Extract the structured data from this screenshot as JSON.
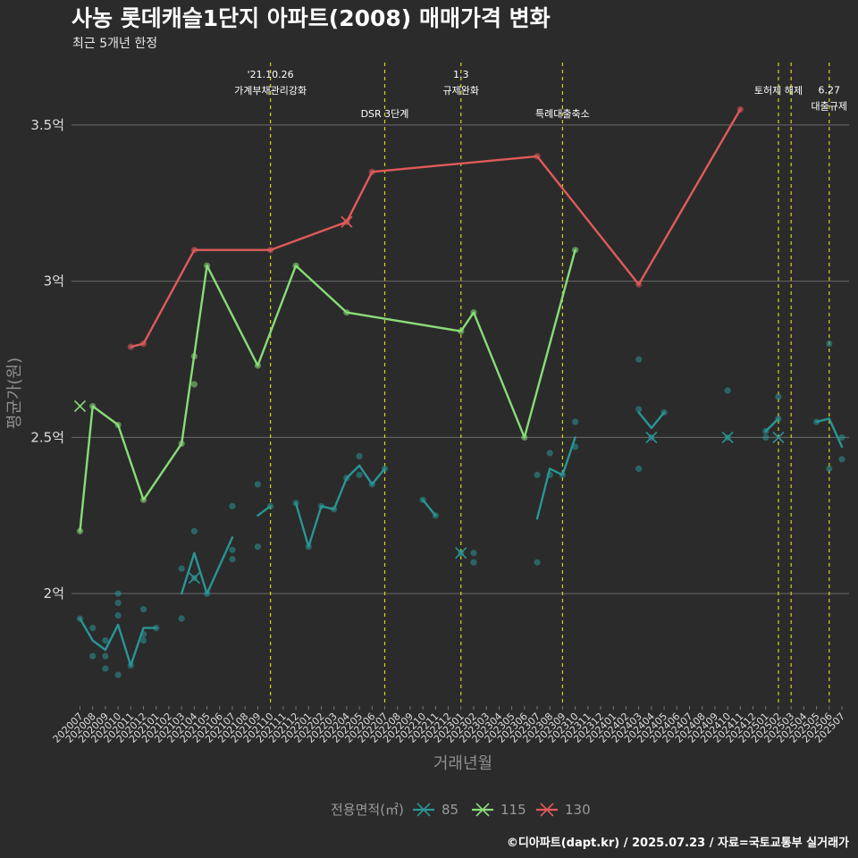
{
  "chart_data": {
    "type": "line",
    "title": "사농 롯데캐슬1단지 아파트(2008) 매매가격 변화",
    "subtitle": "최근 5개년 한정",
    "xlabel": "거래년월",
    "ylabel": "평균가(원)",
    "caption": "©디아파트(dapt.kr) / 2025.07.23 / 자료=국토교통부 실거래가",
    "ylim": [
      1.64,
      3.7
    ],
    "yticks": [
      {
        "value": 2.0,
        "label": "2억"
      },
      {
        "value": 2.5,
        "label": "2.5억"
      },
      {
        "value": 3.0,
        "label": "3억"
      },
      {
        "value": 3.5,
        "label": "3.5억"
      }
    ],
    "categories": [
      "202007",
      "202008",
      "202009",
      "202010",
      "202011",
      "202012",
      "202101",
      "202102",
      "202103",
      "202104",
      "202105",
      "202106",
      "202107",
      "202108",
      "202109",
      "202110",
      "202111",
      "202112",
      "202201",
      "202202",
      "202203",
      "202204",
      "202205",
      "202206",
      "202207",
      "202208",
      "202209",
      "202210",
      "202211",
      "202212",
      "202301",
      "202302",
      "202303",
      "202304",
      "202305",
      "202306",
      "202307",
      "202308",
      "202309",
      "202310",
      "202311",
      "202312",
      "202401",
      "202402",
      "202403",
      "202404",
      "202405",
      "202406",
      "202407",
      "202408",
      "202409",
      "202410",
      "202411",
      "202412",
      "202501",
      "202502",
      "202503",
      "202504",
      "202505",
      "202506",
      "202507"
    ],
    "legend": {
      "title": "전용면적(㎡)",
      "entries": [
        "85",
        "115",
        "130"
      ]
    },
    "series": [
      {
        "name": "85",
        "color": "#2a9595",
        "segments": [
          [
            [
              0,
              1.92
            ],
            [
              1,
              1.85
            ],
            [
              2,
              1.82
            ],
            [
              3,
              1.9
            ],
            [
              4,
              1.77
            ],
            [
              5,
              1.89
            ],
            [
              6,
              1.89
            ]
          ],
          [
            [
              8,
              2.0
            ],
            [
              9,
              2.13
            ],
            [
              10,
              2.0
            ],
            [
              12,
              2.18
            ]
          ],
          [
            [
              14,
              2.25
            ],
            [
              15,
              2.28
            ]
          ],
          [
            [
              17,
              2.29
            ],
            [
              18,
              2.15
            ],
            [
              19,
              2.28
            ],
            [
              20,
              2.27
            ],
            [
              21,
              2.37
            ],
            [
              22,
              2.41
            ],
            [
              23,
              2.35
            ],
            [
              24,
              2.4
            ]
          ],
          [
            [
              27,
              2.3
            ],
            [
              28,
              2.25
            ]
          ],
          [
            [
              36,
              2.24
            ],
            [
              37,
              2.4
            ],
            [
              38,
              2.38
            ],
            [
              39,
              2.5
            ]
          ],
          [
            [
              44,
              2.58
            ],
            [
              45,
              2.53
            ],
            [
              46,
              2.58
            ]
          ],
          [
            [
              54,
              2.52
            ],
            [
              55,
              2.56
            ]
          ],
          [
            [
              58,
              2.55
            ],
            [
              59,
              2.56
            ],
            [
              60,
              2.47
            ]
          ]
        ],
        "points": [
          [
            0,
            1.92
          ],
          [
            1,
            1.8
          ],
          [
            1,
            1.89
          ],
          [
            2,
            1.76
          ],
          [
            2,
            1.85
          ],
          [
            2,
            1.8
          ],
          [
            3,
            1.74
          ],
          [
            3,
            1.93
          ],
          [
            3,
            2.0
          ],
          [
            3,
            1.97
          ],
          [
            4,
            1.77
          ],
          [
            5,
            1.95
          ],
          [
            5,
            1.85
          ],
          [
            5,
            1.87
          ],
          [
            6,
            1.89
          ],
          [
            8,
            2.08
          ],
          [
            8,
            1.92
          ],
          [
            9,
            2.2
          ],
          [
            9,
            2.05
          ],
          [
            10,
            2.0
          ],
          [
            12,
            2.28
          ],
          [
            12,
            2.11
          ],
          [
            12,
            2.14
          ],
          [
            14,
            2.35
          ],
          [
            14,
            2.15
          ],
          [
            15,
            2.28
          ],
          [
            17,
            2.29
          ],
          [
            18,
            2.15
          ],
          [
            19,
            2.28
          ],
          [
            20,
            2.27
          ],
          [
            21,
            2.37
          ],
          [
            22,
            2.44
          ],
          [
            22,
            2.38
          ],
          [
            23,
            2.35
          ],
          [
            24,
            2.4
          ],
          [
            27,
            2.3
          ],
          [
            28,
            2.25
          ],
          [
            30,
            2.13
          ],
          [
            31,
            2.1
          ],
          [
            31,
            2.13
          ],
          [
            36,
            2.1
          ],
          [
            36,
            2.38
          ],
          [
            37,
            2.45
          ],
          [
            37,
            2.38
          ],
          [
            38,
            2.38
          ],
          [
            39,
            2.55
          ],
          [
            39,
            2.47
          ],
          [
            44,
            2.75
          ],
          [
            44,
            2.59
          ],
          [
            44,
            2.4
          ],
          [
            45,
            2.5
          ],
          [
            46,
            2.58
          ],
          [
            51,
            2.65
          ],
          [
            51,
            2.5
          ],
          [
            54,
            2.5
          ],
          [
            54,
            2.52
          ],
          [
            55,
            2.63
          ],
          [
            55,
            2.56
          ],
          [
            58,
            2.55
          ],
          [
            59,
            2.8
          ],
          [
            59,
            2.4
          ],
          [
            60,
            2.43
          ],
          [
            60,
            2.5
          ]
        ],
        "crosses": [
          [
            9,
            2.05
          ],
          [
            30,
            2.13
          ],
          [
            45,
            2.5
          ],
          [
            51,
            2.5
          ],
          [
            55,
            2.5
          ]
        ]
      },
      {
        "name": "115",
        "color": "#88dc78",
        "segments": [
          [
            [
              0,
              2.2
            ],
            [
              1,
              2.6
            ],
            [
              3,
              2.54
            ],
            [
              5,
              2.3
            ],
            [
              8,
              2.48
            ],
            [
              10,
              3.05
            ],
            [
              14,
              2.73
            ],
            [
              17,
              3.05
            ],
            [
              21,
              2.9
            ],
            [
              30,
              2.84
            ],
            [
              31,
              2.9
            ],
            [
              35,
              2.5
            ],
            [
              39,
              3.1
            ]
          ]
        ],
        "points": [
          [
            0,
            2.2
          ],
          [
            1,
            2.6
          ],
          [
            3,
            2.54
          ],
          [
            5,
            2.3
          ],
          [
            8,
            2.48
          ],
          [
            9,
            2.67
          ],
          [
            9,
            2.76
          ],
          [
            10,
            3.05
          ],
          [
            14,
            2.73
          ],
          [
            17,
            3.05
          ],
          [
            21,
            2.9
          ],
          [
            30,
            2.84
          ],
          [
            31,
            2.9
          ],
          [
            35,
            2.5
          ],
          [
            39,
            3.1
          ]
        ],
        "crosses": [
          [
            0,
            2.6
          ]
        ]
      },
      {
        "name": "130",
        "color": "#e05a5a",
        "segments": [
          [
            [
              4,
              2.79
            ],
            [
              5,
              2.8
            ],
            [
              9,
              3.1
            ],
            [
              15,
              3.1
            ],
            [
              21,
              3.19
            ],
            [
              23,
              3.35
            ],
            [
              36,
              3.4
            ],
            [
              44,
              2.99
            ],
            [
              52,
              3.55
            ]
          ]
        ],
        "points": [
          [
            4,
            2.79
          ],
          [
            5,
            2.8
          ],
          [
            9,
            3.1
          ],
          [
            15,
            3.1
          ],
          [
            21,
            3.19
          ],
          [
            23,
            3.35
          ],
          [
            36,
            3.4
          ],
          [
            44,
            2.99
          ],
          [
            52,
            3.55
          ]
        ],
        "crosses": [
          [
            21,
            3.19
          ]
        ]
      }
    ],
    "events": [
      {
        "x": 15,
        "lines": [
          "'21.10.26",
          "가계부채관리강화"
        ],
        "y": 3.6
      },
      {
        "x": 24,
        "lines": [
          "DSR 3단계"
        ],
        "y": 3.525
      },
      {
        "x": 30,
        "lines": [
          "1.3",
          "규제완화"
        ],
        "y": 3.6
      },
      {
        "x": 38,
        "lines": [
          "특례대출축소"
        ],
        "y": 3.525
      },
      {
        "x": 55,
        "lines": [
          "토허제 해제"
        ],
        "y": 3.6
      },
      {
        "x": 56,
        "lines": [],
        "y": 3.6
      },
      {
        "x": 59,
        "lines": [
          "6.27",
          "대출규제"
        ],
        "y": 3.55
      }
    ]
  }
}
